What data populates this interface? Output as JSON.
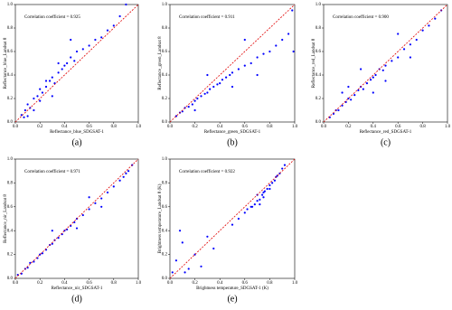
{
  "chart_data": [
    {
      "type": "scatter",
      "panel_label": "(a)",
      "annotation": "Correlation coefficient = 0.925",
      "x_label": "Reflectance_blue_SDGSAT-1",
      "y_label": "Reflectance_blue_Landsat 8",
      "color": "#0000ff",
      "x": [
        0.05,
        0.08,
        0.1,
        0.12,
        0.15,
        0.18,
        0.2,
        0.22,
        0.25,
        0.28,
        0.3,
        0.32,
        0.35,
        0.38,
        0.4,
        0.42,
        0.45,
        0.48,
        0.5,
        0.55,
        0.6,
        0.65,
        0.7,
        0.75,
        0.8,
        0.15,
        0.25,
        0.35,
        0.1,
        0.3,
        0.07,
        0.2,
        0.45,
        0.85,
        0.9
      ],
      "y": [
        0.06,
        0.1,
        0.15,
        0.12,
        0.2,
        0.22,
        0.28,
        0.25,
        0.3,
        0.35,
        0.38,
        0.33,
        0.42,
        0.45,
        0.48,
        0.5,
        0.55,
        0.52,
        0.6,
        0.62,
        0.65,
        0.7,
        0.72,
        0.78,
        0.82,
        0.1,
        0.35,
        0.5,
        0.05,
        0.22,
        0.04,
        0.18,
        0.7,
        0.9,
        1.0
      ],
      "xlim": [
        0,
        1
      ],
      "ylim": [
        0,
        1
      ],
      "xticks": [
        {
          "value": 0,
          "label": "0.0"
        },
        0.2,
        0.4,
        0.6,
        0.8,
        {
          "value": 1,
          "label": "1.0"
        }
      ],
      "yticks": [
        {
          "value": 0,
          "label": "0.0"
        },
        0.2,
        0.4,
        0.6,
        0.8,
        {
          "value": 1,
          "label": "1.0"
        }
      ]
    },
    {
      "type": "scatter",
      "panel_label": "(b)",
      "annotation": "Correlation coefficient = 0.911",
      "x_label": "Reflectance_green_SDGSAT-1",
      "y_label": "Reflectance_green_Landsat 8",
      "color": "#0000ff",
      "x": [
        0.05,
        0.08,
        0.1,
        0.12,
        0.15,
        0.18,
        0.2,
        0.22,
        0.25,
        0.28,
        0.3,
        0.32,
        0.35,
        0.38,
        0.4,
        0.42,
        0.45,
        0.48,
        0.5,
        0.55,
        0.6,
        0.65,
        0.7,
        0.75,
        0.8,
        0.85,
        0.9,
        0.95,
        0.98,
        0.3,
        0.5,
        0.7,
        0.99,
        0.6,
        0.2
      ],
      "y": [
        0.05,
        0.08,
        0.09,
        0.12,
        0.13,
        0.15,
        0.18,
        0.2,
        0.22,
        0.24,
        0.25,
        0.28,
        0.3,
        0.32,
        0.33,
        0.36,
        0.38,
        0.4,
        0.42,
        0.45,
        0.48,
        0.5,
        0.55,
        0.58,
        0.6,
        0.65,
        0.7,
        0.75,
        0.95,
        0.4,
        0.3,
        0.4,
        0.6,
        0.7,
        0.1
      ],
      "xlim": [
        0,
        1
      ],
      "ylim": [
        0,
        1
      ],
      "xticks": [
        {
          "value": 0,
          "label": "0.0"
        },
        0.2,
        0.4,
        0.6,
        0.8,
        {
          "value": 1,
          "label": "1.0"
        }
      ],
      "yticks": [
        {
          "value": 0,
          "label": "0.0"
        },
        0.2,
        0.4,
        0.6,
        0.8,
        {
          "value": 1,
          "label": "1.0"
        }
      ]
    },
    {
      "type": "scatter",
      "panel_label": "(c)",
      "annotation": "Correlation coefficient = 0.900",
      "x_label": "Reflectance_red_SDGSAT-1",
      "y_label": "Reflectance_red_Landsat 8",
      "color": "#0000ff",
      "x": [
        0.05,
        0.08,
        0.1,
        0.12,
        0.15,
        0.18,
        0.2,
        0.22,
        0.25,
        0.28,
        0.3,
        0.32,
        0.35,
        0.38,
        0.4,
        0.42,
        0.45,
        0.48,
        0.5,
        0.55,
        0.6,
        0.65,
        0.7,
        0.75,
        0.8,
        0.85,
        0.9,
        0.95,
        0.3,
        0.5,
        0.7,
        0.2,
        0.4,
        0.6,
        0.15
      ],
      "y": [
        0.04,
        0.07,
        0.1,
        0.1,
        0.14,
        0.17,
        0.2,
        0.19,
        0.23,
        0.27,
        0.3,
        0.28,
        0.33,
        0.36,
        0.38,
        0.4,
        0.45,
        0.44,
        0.48,
        0.52,
        0.55,
        0.62,
        0.66,
        0.7,
        0.78,
        0.82,
        0.88,
        0.95,
        0.45,
        0.35,
        0.55,
        0.3,
        0.25,
        0.75,
        0.25
      ],
      "xlim": [
        0,
        1
      ],
      "ylim": [
        0,
        1
      ],
      "xticks": [
        {
          "value": 0,
          "label": "0.0"
        },
        0.2,
        0.4,
        0.6,
        0.8,
        {
          "value": 1,
          "label": "1.0"
        }
      ],
      "yticks": [
        {
          "value": 0,
          "label": "0.0"
        },
        0.2,
        0.4,
        0.6,
        0.8,
        {
          "value": 1,
          "label": "1.0"
        }
      ]
    },
    {
      "type": "scatter",
      "panel_label": "(d)",
      "annotation": "Correlation coefficient = 0.971",
      "x_label": "Reflectance_nir_SDGSAT-1",
      "y_label": "Reflectance_nir_Landsat 8",
      "color": "#0000ff",
      "x": [
        0.02,
        0.05,
        0.08,
        0.1,
        0.12,
        0.15,
        0.18,
        0.2,
        0.22,
        0.25,
        0.28,
        0.3,
        0.32,
        0.35,
        0.38,
        0.4,
        0.42,
        0.45,
        0.48,
        0.5,
        0.55,
        0.6,
        0.65,
        0.7,
        0.75,
        0.8,
        0.85,
        0.88,
        0.9,
        0.92,
        0.95,
        0.3,
        0.5,
        0.7,
        0.6
      ],
      "y": [
        0.03,
        0.04,
        0.08,
        0.09,
        0.13,
        0.14,
        0.17,
        0.2,
        0.21,
        0.24,
        0.28,
        0.29,
        0.32,
        0.34,
        0.37,
        0.4,
        0.41,
        0.44,
        0.47,
        0.5,
        0.53,
        0.58,
        0.63,
        0.67,
        0.72,
        0.77,
        0.82,
        0.85,
        0.88,
        0.9,
        0.95,
        0.4,
        0.42,
        0.6,
        0.68
      ],
      "xlim": [
        0,
        1
      ],
      "ylim": [
        0,
        1
      ],
      "xticks": [
        {
          "value": 0,
          "label": "0.0"
        },
        0.2,
        0.4,
        0.6,
        0.8,
        {
          "value": 1,
          "label": "1.0"
        }
      ],
      "yticks": [
        {
          "value": 0,
          "label": "0.0"
        },
        0.2,
        0.4,
        0.6,
        0.8,
        {
          "value": 1,
          "label": "1.0"
        }
      ]
    },
    {
      "type": "scatter",
      "panel_label": "(e)",
      "annotation": "Correlation coefficient = 0.922",
      "x_label": "Brightness temperature_SDGSAT-1 (K)",
      "y_label": "Brightness temperature_Landsat 8 (K)",
      "color": "#0000ff",
      "x": [
        0.02,
        0.05,
        0.1,
        0.15,
        0.2,
        0.25,
        0.3,
        0.35,
        0.08,
        0.12,
        0.6,
        0.62,
        0.65,
        0.68,
        0.7,
        0.72,
        0.74,
        0.75,
        0.76,
        0.78,
        0.8,
        0.82,
        0.84,
        0.85,
        0.86,
        0.88,
        0.9,
        0.92,
        0.7,
        0.75,
        0.8,
        0.66,
        0.72,
        0.5,
        0.55
      ],
      "y": [
        0.05,
        0.15,
        0.3,
        0.08,
        0.2,
        0.1,
        0.35,
        0.25,
        0.4,
        0.05,
        0.55,
        0.58,
        0.6,
        0.62,
        0.65,
        0.66,
        0.7,
        0.72,
        0.73,
        0.75,
        0.78,
        0.8,
        0.82,
        0.85,
        0.86,
        0.88,
        0.92,
        0.95,
        0.7,
        0.68,
        0.75,
        0.6,
        0.62,
        0.45,
        0.5
      ],
      "xlim": [
        0,
        1
      ],
      "ylim": [
        0,
        1
      ],
      "xticks": [
        {
          "value": 0,
          "label": "0.0"
        },
        0.2,
        0.4,
        0.6,
        0.8,
        {
          "value": 1,
          "label": "1.0"
        }
      ],
      "yticks": [
        {
          "value": 0,
          "label": "0.0"
        },
        0.2,
        0.4,
        0.6,
        0.8,
        {
          "value": 1,
          "label": "1.0"
        }
      ]
    }
  ]
}
